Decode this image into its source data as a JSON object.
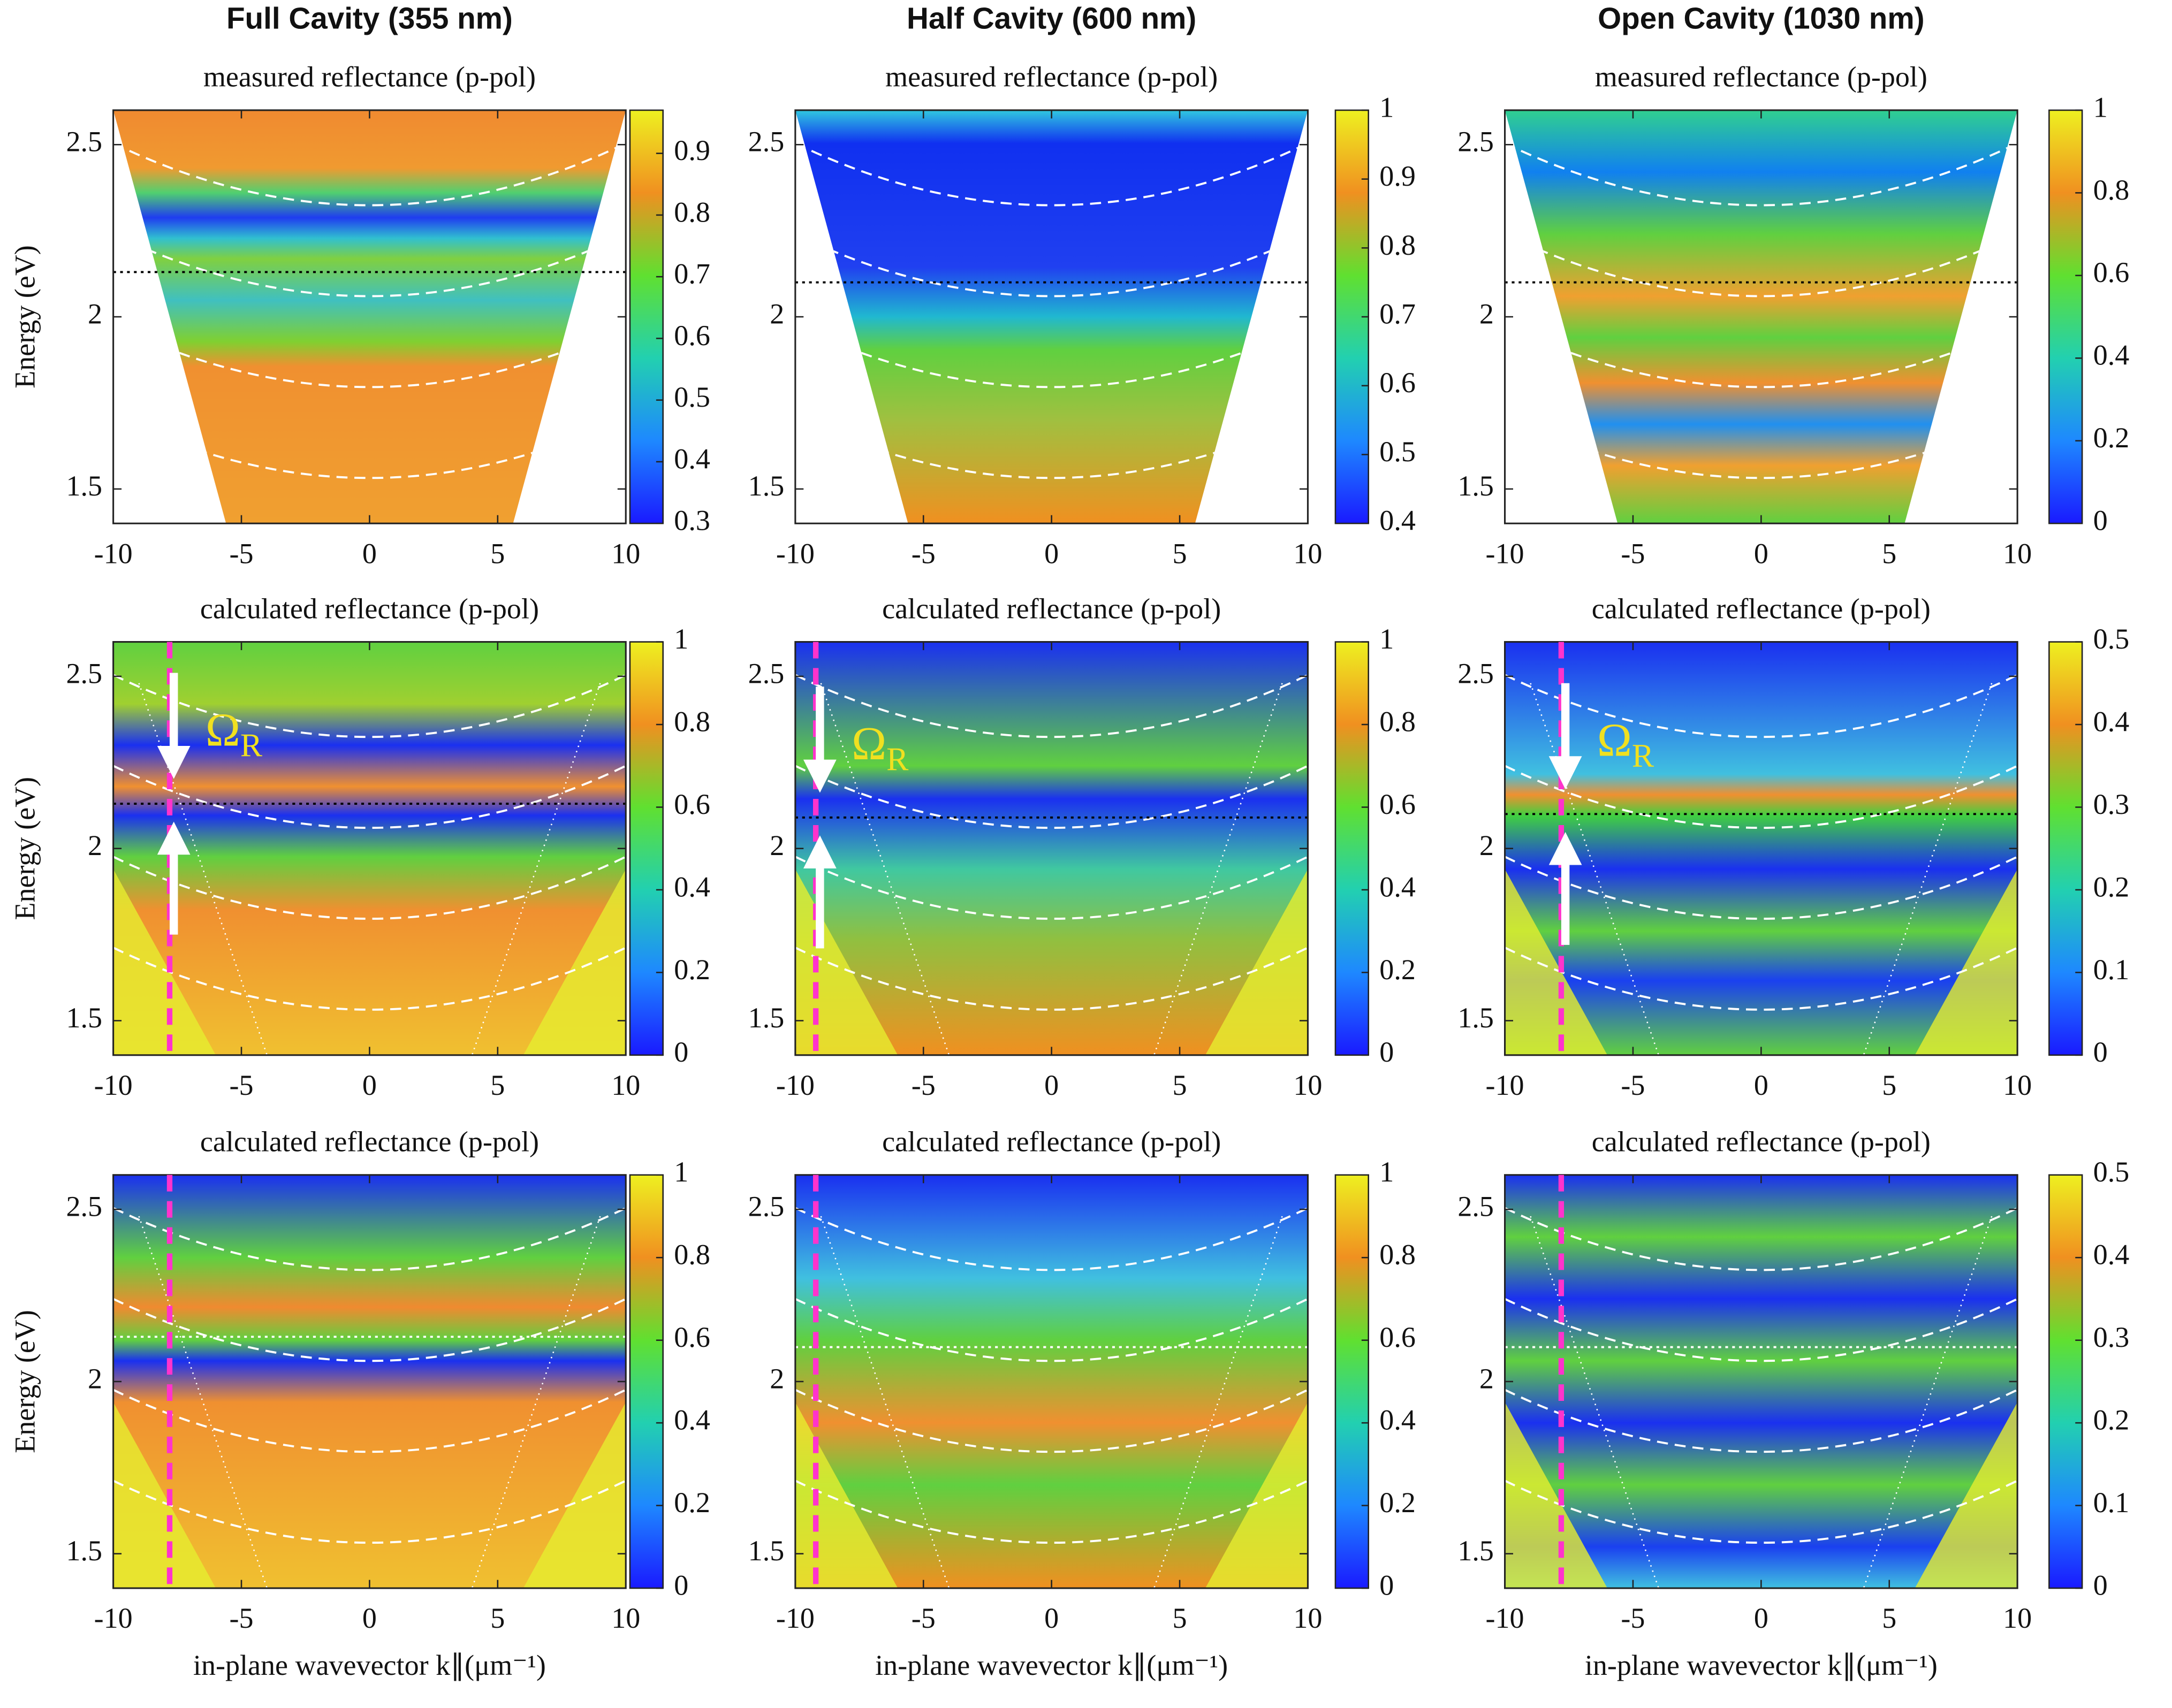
{
  "column_titles": [
    "Full Cavity  (355 nm)",
    "Half Cavity  (600 nm)",
    "Open Cavity  (1030 nm)"
  ],
  "colormap": [
    "#1a1aff",
    "#1e88ff",
    "#22d0b0",
    "#60e030",
    "#f09020",
    "#eef020"
  ],
  "chart_data": [
    {
      "type": "heatmap",
      "title": "measured reflectance (p-pol)",
      "ylabel": "Energy (eV)",
      "xlim": [
        -10,
        10
      ],
      "xticks": [
        -10,
        -5,
        0,
        5,
        10
      ],
      "ylim": [
        1.4,
        2.6
      ],
      "yticks": [
        1.5,
        2,
        2.5
      ],
      "hline": 2.13,
      "colorbar": {
        "lim": [
          0.3,
          0.97
        ],
        "ticks": [
          0.3,
          0.4,
          0.5,
          0.6,
          0.7,
          0.8,
          0.9
        ]
      }
    },
    {
      "type": "heatmap",
      "title": "measured reflectance (p-pol)",
      "xlim": [
        -10,
        10
      ],
      "xticks": [
        -10,
        -5,
        0,
        5,
        10
      ],
      "ylim": [
        1.4,
        2.6
      ],
      "yticks": [
        1.5,
        2,
        2.5
      ],
      "hline": 2.1,
      "colorbar": {
        "lim": [
          0.4,
          1
        ],
        "ticks": [
          0.4,
          0.5,
          0.6,
          0.7,
          0.8,
          0.9,
          1
        ]
      }
    },
    {
      "type": "heatmap",
      "title": "measured reflectance (p-pol)",
      "xlim": [
        -10,
        10
      ],
      "xticks": [
        -10,
        -5,
        0,
        5,
        10
      ],
      "ylim": [
        1.4,
        2.6
      ],
      "yticks": [
        1.5,
        2,
        2.5
      ],
      "hline": 2.1,
      "colorbar": {
        "lim": [
          0,
          1
        ],
        "ticks": [
          0,
          0.2,
          0.4,
          0.6,
          0.8,
          1
        ]
      }
    },
    {
      "type": "heatmap",
      "title": "calculated reflectance (p-pol)",
      "ylabel": "Energy (eV)",
      "xlim": [
        -10,
        10
      ],
      "xticks": [
        -10,
        -5,
        0,
        5,
        10
      ],
      "ylim": [
        1.4,
        2.6
      ],
      "yticks": [
        1.5,
        2,
        2.5
      ],
      "hline": 2.13,
      "vline": -7.8,
      "annotation": {
        "symbol": "Ω",
        "subscript": "R"
      },
      "colorbar": {
        "lim": [
          0,
          1
        ],
        "ticks": [
          0,
          0.2,
          0.4,
          0.6,
          0.8,
          1
        ]
      }
    },
    {
      "type": "heatmap",
      "title": "calculated reflectance (p-pol)",
      "xlim": [
        -10,
        10
      ],
      "xticks": [
        -10,
        -5,
        0,
        5,
        10
      ],
      "ylim": [
        1.4,
        2.6
      ],
      "yticks": [
        1.5,
        2,
        2.5
      ],
      "hline": 2.09,
      "vline": -9.2,
      "annotation": {
        "symbol": "Ω",
        "subscript": "R"
      },
      "colorbar": {
        "lim": [
          0,
          1
        ],
        "ticks": [
          0,
          0.2,
          0.4,
          0.6,
          0.8,
          1
        ]
      }
    },
    {
      "type": "heatmap",
      "title": "calculated reflectance (p-pol)",
      "xlim": [
        -10,
        10
      ],
      "xticks": [
        -10,
        -5,
        0,
        5,
        10
      ],
      "ylim": [
        1.4,
        2.6
      ],
      "yticks": [
        1.5,
        2,
        2.5
      ],
      "hline": 2.1,
      "vline": -7.8,
      "annotation": {
        "symbol": "Ω",
        "subscript": "R"
      },
      "colorbar": {
        "lim": [
          0,
          0.5
        ],
        "ticks": [
          0,
          0.1,
          0.2,
          0.3,
          0.4,
          0.5
        ]
      }
    },
    {
      "type": "heatmap",
      "title": "calculated reflectance (p-pol)",
      "ylabel": "Energy (eV)",
      "xlabel": "in-plane wavevector k∥(μm⁻¹)",
      "xlim": [
        -10,
        10
      ],
      "xticks": [
        -10,
        -5,
        0,
        5,
        10
      ],
      "ylim": [
        1.4,
        2.6
      ],
      "yticks": [
        1.5,
        2,
        2.5
      ],
      "hline": 2.13,
      "vline": -7.8,
      "colorbar": {
        "lim": [
          0,
          1
        ],
        "ticks": [
          0,
          0.2,
          0.4,
          0.6,
          0.8,
          1
        ]
      }
    },
    {
      "type": "heatmap",
      "title": "calculated reflectance (p-pol)",
      "xlabel": "in-plane wavevector k∥(μm⁻¹)",
      "xlim": [
        -10,
        10
      ],
      "xticks": [
        -10,
        -5,
        0,
        5,
        10
      ],
      "ylim": [
        1.4,
        2.6
      ],
      "yticks": [
        1.5,
        2,
        2.5
      ],
      "hline": 2.1,
      "vline": -9.2,
      "colorbar": {
        "lim": [
          0,
          1
        ],
        "ticks": [
          0,
          0.2,
          0.4,
          0.6,
          0.8,
          1
        ]
      }
    },
    {
      "type": "heatmap",
      "title": "calculated reflectance (p-pol)",
      "xlabel": "in-plane wavevector k∥(μm⁻¹)",
      "xlim": [
        -10,
        10
      ],
      "xticks": [
        -10,
        -5,
        0,
        5,
        10
      ],
      "ylim": [
        1.4,
        2.6
      ],
      "yticks": [
        1.5,
        2,
        2.5
      ],
      "hline": 2.1,
      "vline": -7.8,
      "colorbar": {
        "lim": [
          0,
          0.5
        ],
        "ticks": [
          0,
          0.1,
          0.2,
          0.3,
          0.4,
          0.5
        ]
      }
    }
  ]
}
